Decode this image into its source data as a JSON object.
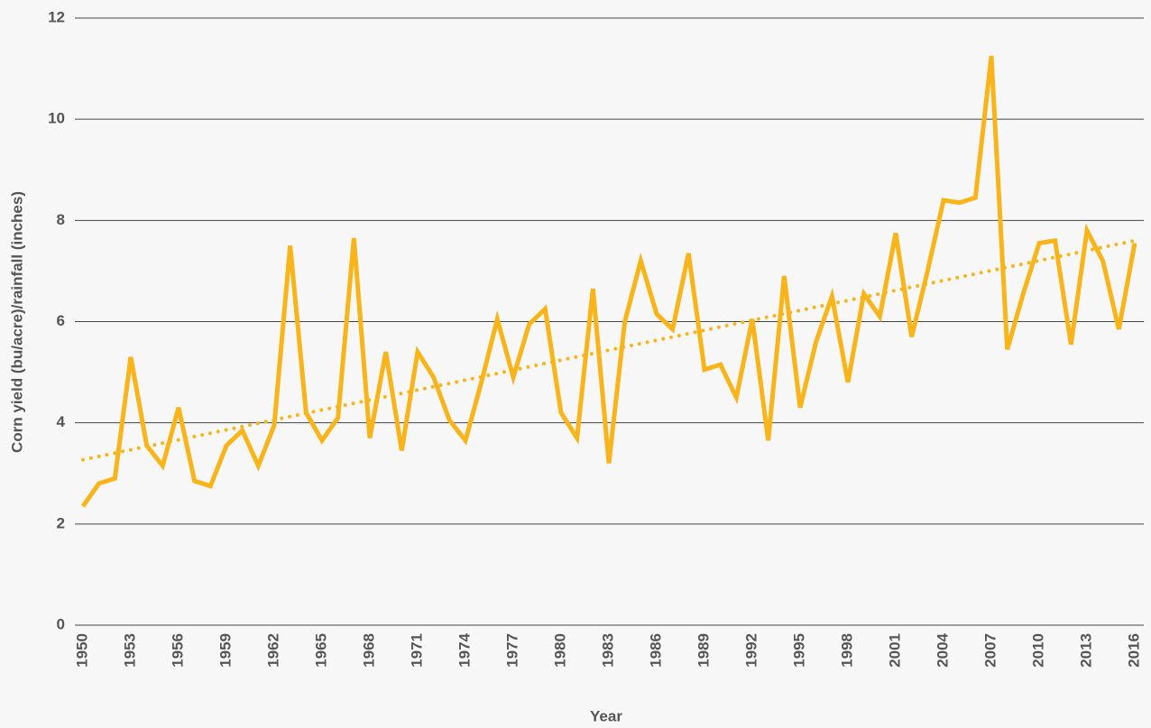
{
  "chart_data": {
    "type": "line",
    "x_label": "Year",
    "y_label": "Corn yield (bu/acre)/rainfall (inches)",
    "x": [
      1950,
      1951,
      1952,
      1953,
      1954,
      1955,
      1956,
      1957,
      1958,
      1959,
      1960,
      1961,
      1962,
      1963,
      1964,
      1965,
      1966,
      1967,
      1968,
      1969,
      1970,
      1971,
      1972,
      1973,
      1974,
      1975,
      1976,
      1977,
      1978,
      1979,
      1980,
      1981,
      1982,
      1983,
      1984,
      1985,
      1986,
      1987,
      1988,
      1989,
      1990,
      1991,
      1992,
      1993,
      1994,
      1995,
      1996,
      1997,
      1998,
      1999,
      2000,
      2001,
      2002,
      2003,
      2004,
      2005,
      2006,
      2007,
      2008,
      2009,
      2010,
      2011,
      2012,
      2013,
      2014,
      2015,
      2016
    ],
    "series": [
      {
        "color": "#f8b418",
        "values": [
          2.35,
          2.8,
          2.9,
          5.3,
          3.55,
          3.15,
          4.3,
          2.85,
          2.75,
          3.55,
          3.85,
          3.15,
          3.95,
          7.5,
          4.2,
          3.65,
          4.1,
          7.65,
          3.7,
          5.4,
          3.45,
          5.4,
          4.9,
          4.05,
          3.65,
          4.8,
          6.05,
          4.9,
          5.95,
          6.25,
          4.2,
          3.7,
          6.65,
          3.2,
          6.0,
          7.2,
          6.15,
          5.85,
          7.35,
          5.05,
          5.15,
          4.5,
          6.05,
          3.65,
          6.9,
          4.3,
          5.6,
          6.5,
          4.8,
          6.55,
          6.1,
          7.75,
          5.7,
          7.0,
          8.4,
          8.35,
          8.45,
          11.25,
          5.45,
          6.55,
          7.55,
          7.6,
          5.55,
          7.8,
          7.2,
          5.85,
          7.55
        ]
      }
    ],
    "trend": {
      "color": "#f8b418",
      "x": [
        1950,
        2016
      ],
      "values": [
        3.27,
        7.6
      ]
    },
    "xlim": [
      1950,
      2016
    ],
    "xticks": [
      1950,
      1953,
      1956,
      1959,
      1962,
      1965,
      1968,
      1971,
      1974,
      1977,
      1980,
      1983,
      1986,
      1989,
      1992,
      1995,
      1998,
      2001,
      2004,
      2007,
      2010,
      2013,
      2016
    ],
    "ylim": [
      0,
      12
    ],
    "yticks": [
      0,
      2,
      4,
      6,
      8,
      10,
      12
    ],
    "grid": true
  }
}
